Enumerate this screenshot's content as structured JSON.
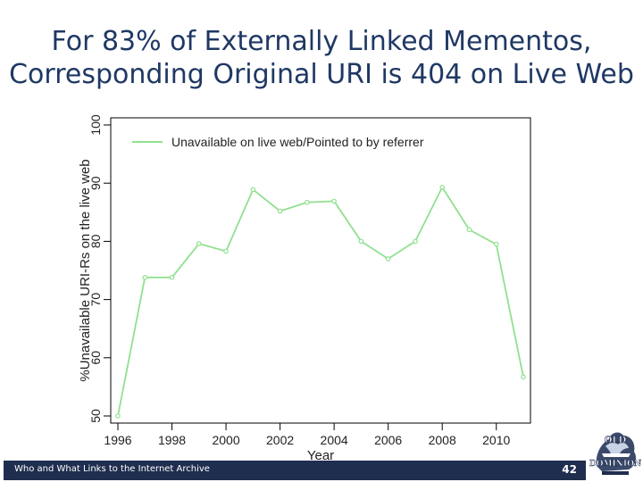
{
  "slide": {
    "title_line1": "For 83% of Externally Linked Mementos,",
    "title_line2": "Corresponding Original URI is 404 on Live Web",
    "footer_text": "Who and What Links to the Internet Archive",
    "page_number": "42",
    "logo_text_top": "OLD",
    "logo_text_bottom": "DOMINION"
  },
  "colors": {
    "title": "#1f3864",
    "line": "#90e090",
    "footer_bar": "#1f2e4f"
  },
  "chart_data": {
    "type": "line",
    "title": "",
    "xlabel": "Year",
    "ylabel": "%Unavailable URI-Rs on the live web",
    "xlim": [
      1996,
      2011
    ],
    "ylim": [
      50,
      100
    ],
    "x_ticks": [
      1996,
      1998,
      2000,
      2002,
      2004,
      2006,
      2008,
      2010
    ],
    "y_ticks": [
      50,
      60,
      70,
      80,
      90,
      100
    ],
    "legend_position": "top-left",
    "series": [
      {
        "name": "Unavailable on live web/Pointed to by referrer",
        "x": [
          1996,
          1997,
          1998,
          1999,
          2000,
          2001,
          2002,
          2003,
          2004,
          2005,
          2006,
          2007,
          2008,
          2009,
          2010,
          2011
        ],
        "values": [
          50.0,
          73.8,
          73.8,
          79.6,
          78.3,
          88.9,
          85.2,
          86.7,
          86.9,
          80.0,
          77.0,
          80.0,
          89.3,
          82.0,
          79.5,
          56.7
        ]
      }
    ]
  }
}
